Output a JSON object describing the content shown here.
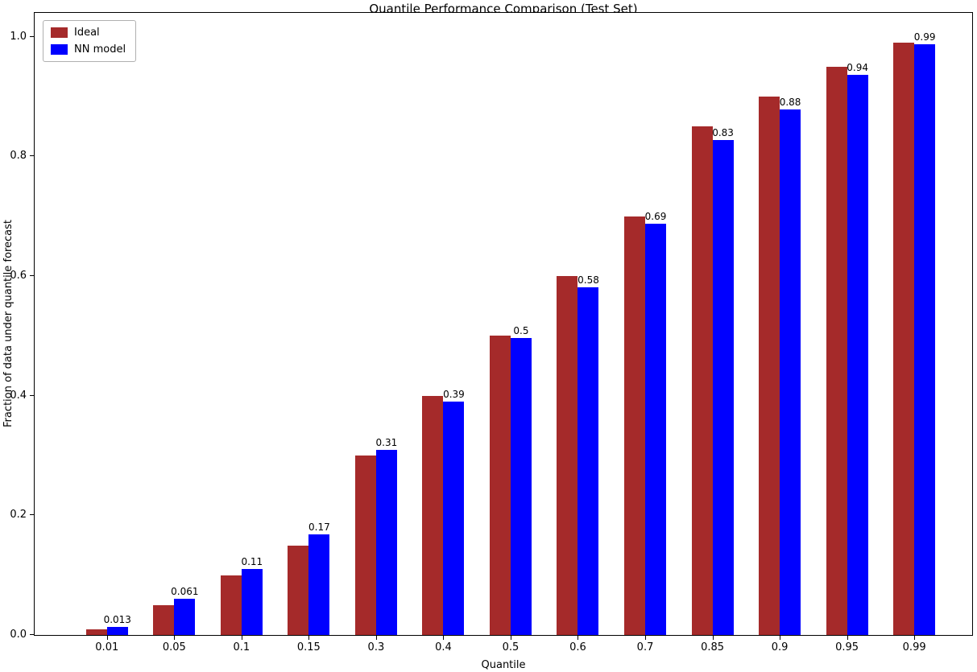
{
  "chart_data": {
    "type": "bar",
    "title": "Quantile Performance Comparison (Test Set)",
    "xlabel": "Quantile",
    "ylabel": "Fraction of data under quantile forecast",
    "categories": [
      "0.01",
      "0.05",
      "0.1",
      "0.15",
      "0.3",
      "0.4",
      "0.5",
      "0.6",
      "0.7",
      "0.85",
      "0.9",
      "0.95",
      "0.99"
    ],
    "series": [
      {
        "name": "Ideal",
        "color": "#a52a2a",
        "values": [
          0.01,
          0.05,
          0.1,
          0.15,
          0.3,
          0.4,
          0.5,
          0.6,
          0.7,
          0.85,
          0.9,
          0.95,
          0.99
        ]
      },
      {
        "name": "NN model",
        "color": "#0000ff",
        "values": [
          0.013,
          0.061,
          0.111,
          0.168,
          0.31,
          0.39,
          0.497,
          0.581,
          0.688,
          0.828,
          0.879,
          0.937,
          0.988
        ],
        "labels": [
          "0.013",
          "0.061",
          "0.11",
          "0.17",
          "0.31",
          "0.39",
          "0.5",
          "0.58",
          "0.69",
          "0.83",
          "0.88",
          "0.94",
          "0.99"
        ]
      }
    ],
    "ylim": [
      0,
      1.04
    ],
    "yticks": [
      0.0,
      0.2,
      0.4,
      0.6,
      0.8,
      1.0
    ],
    "grid": false,
    "legend_position": "upper left"
  }
}
